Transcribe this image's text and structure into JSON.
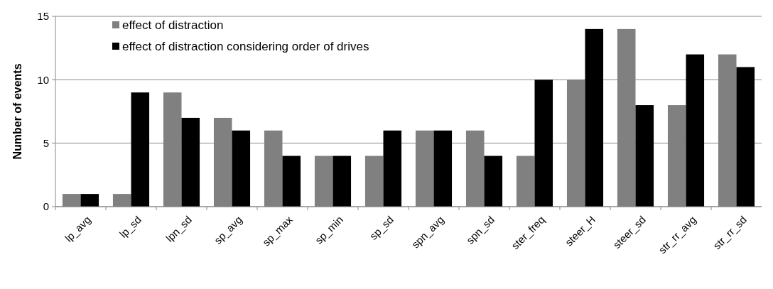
{
  "chart_data": {
    "type": "bar",
    "ylabel": "Number of events",
    "categories": [
      "lp_avg",
      "lp_sd",
      "lpn_sd",
      "sp_avg",
      "sp_max",
      "sp_min",
      "sp_sd",
      "spn_avg",
      "spn_sd",
      "ster_freq",
      "steer_H",
      "steer_sd",
      "str_rr_avg",
      "str_rr_sd"
    ],
    "series": [
      {
        "name": "effect of distraction",
        "color": "#808080",
        "values": [
          1,
          1,
          9,
          7,
          6,
          4,
          4,
          6,
          6,
          4,
          10,
          14,
          8,
          12
        ]
      },
      {
        "name": "effect of distraction considering order of drives",
        "color": "#000000",
        "values": [
          1,
          9,
          7,
          6,
          4,
          4,
          6,
          6,
          4,
          10,
          14,
          8,
          12,
          11
        ]
      }
    ],
    "ylim": [
      0,
      15
    ],
    "yticks": [
      0,
      5,
      10,
      15
    ],
    "grid": "y",
    "legend": "top left"
  }
}
